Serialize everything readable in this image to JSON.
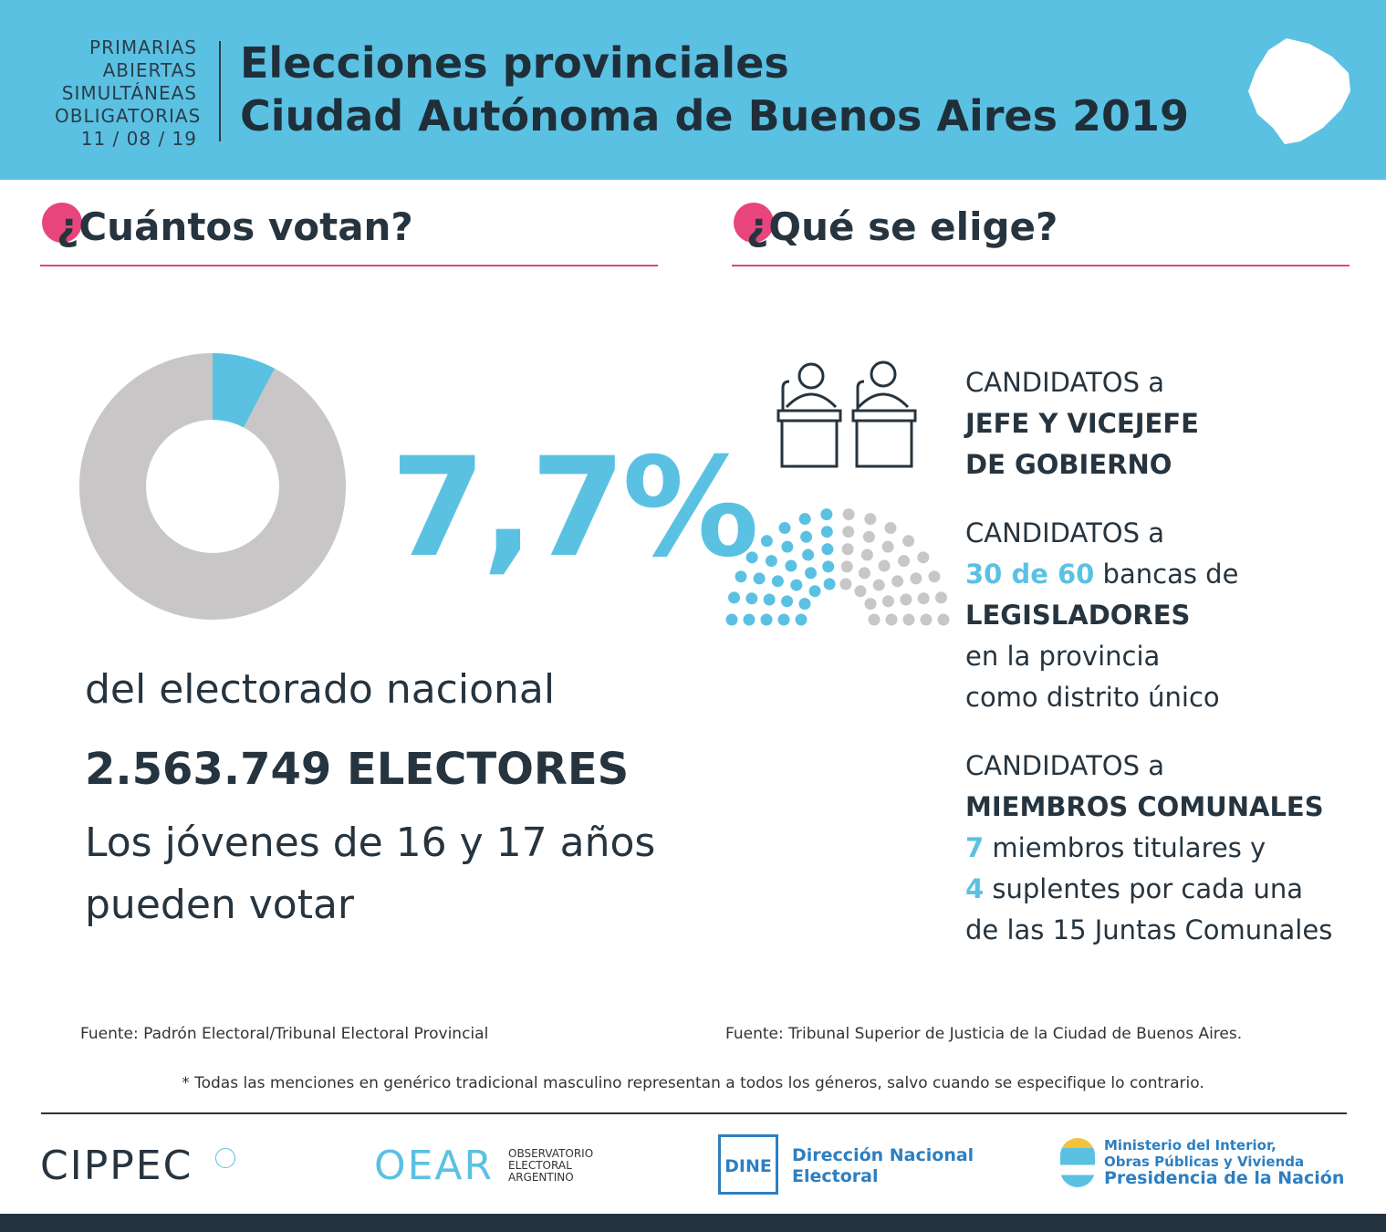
{
  "header": {
    "kicker": [
      "PRIMARIAS",
      "ABIERTAS",
      "SIMULTÁNEAS",
      "OBLIGATORIAS",
      "11 / 08 / 19"
    ],
    "title": [
      "Elecciones provinciales",
      "Ciudad Autónoma de Buenos Aires 2019"
    ]
  },
  "left": {
    "heading": "¿Cuántos votan?",
    "share": {
      "value": 7.7,
      "label": "7,7%"
    },
    "lines": [
      "del electorado nacional",
      "2.563.749 ELECTORES",
      "Los jóvenes de 16 y 17 años",
      "pueden votar"
    ],
    "source": "Fuente: Padrón Electoral/Tribunal Electoral Provincial"
  },
  "right": {
    "heading": "¿Qué se elige?",
    "blocks": [
      [
        [
          {
            "text": "CANDIDATOS a",
            "weight": "normal"
          }
        ],
        [
          {
            "text": "JEFE Y VICEJEFE",
            "weight": "bold"
          }
        ],
        [
          {
            "text": "DE GOBIERNO",
            "weight": "bold"
          }
        ]
      ],
      [
        [
          {
            "text": "CANDIDATOS a",
            "weight": "normal"
          }
        ],
        [
          {
            "text": "30 de 60",
            "weight": "bold",
            "color": "#5bc1e3"
          },
          {
            "text": " bancas de",
            "weight": "normal"
          }
        ],
        [
          {
            "text": "LEGISLADORES",
            "weight": "bold"
          }
        ],
        [
          {
            "text": "en la provincia",
            "weight": "normal"
          }
        ],
        [
          {
            "text": "como distrito único",
            "weight": "normal"
          }
        ]
      ],
      [
        [
          {
            "text": "CANDIDATOS a",
            "weight": "normal"
          }
        ],
        [
          {
            "text": "MIEMBROS COMUNALES",
            "weight": "bold"
          }
        ],
        [
          {
            "text": "7",
            "weight": "bold",
            "color": "#5bc1e3"
          },
          {
            "text": " miembros titulares y",
            "weight": "normal"
          }
        ],
        [
          {
            "text": "4",
            "weight": "bold",
            "color": "#5bc1e3"
          },
          {
            "text": " suplentes por cada una",
            "weight": "normal"
          }
        ],
        [
          {
            "text": "de las 15 Juntas Comunales",
            "weight": "normal"
          }
        ]
      ]
    ],
    "source": "Fuente: Tribunal Superior de Justicia de la Ciudad de Buenos Aires."
  },
  "footnote": "* Todas las menciones en genérico tradicional masculino representan a todos los géneros, salvo cuando se especifique lo contrario.",
  "logos": {
    "cippec": "CIPPEC",
    "oear": "OEAR",
    "oear_sub": [
      "OBSERVATORIO",
      "ELECTORAL",
      "ARGENTINO"
    ],
    "dine": "DINE",
    "dine_name": [
      "Dirección Nacional",
      "Electoral"
    ],
    "ministerio": [
      "Ministerio del Interior,",
      "Obras Públicas y Vivienda",
      "Presidencia de la Nación"
    ]
  }
}
